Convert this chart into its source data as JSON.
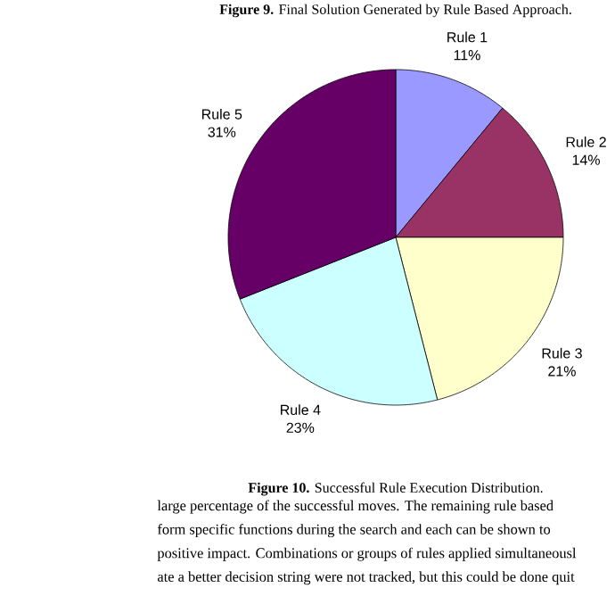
{
  "chart_data": {
    "type": "pie",
    "title": "**Figure 10.** Successful Rule Execution Distribution.",
    "categories": [
      "Rule 1",
      "Rule 2",
      "Rule 3",
      "Rule 4",
      "Rule 5"
    ],
    "values": [
      11,
      14,
      21,
      23,
      31
    ],
    "value_labels": [
      "11%",
      "14%",
      "21%",
      "23%",
      "31%"
    ],
    "colors": [
      "#9999ff",
      "#993366",
      "#ffffcc",
      "#ccffff",
      "#660066"
    ],
    "annotations": [
      "**Figure 9.** Final Solution Generated by Rule Based Approach.",
      "large percentage of the successful moves. The remaining rule based",
      "form specific functions during the search and each can be shown to",
      "positive impact. Combinations or groups of rules applied simultaneousl",
      "ate a better decision string were not tracked, but this could be done quit"
    ]
  }
}
